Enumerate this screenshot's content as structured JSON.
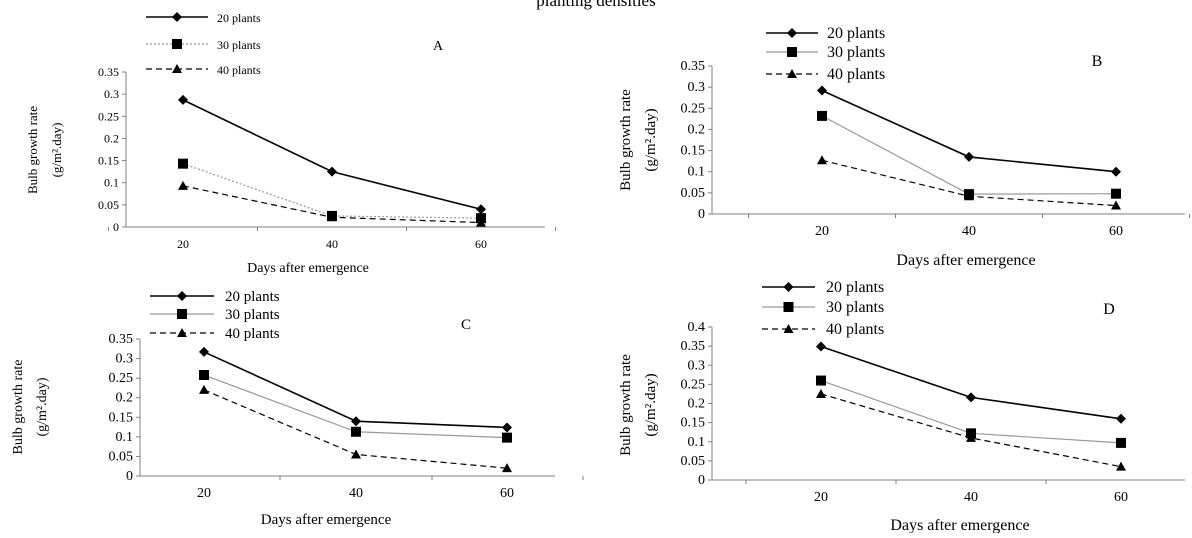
{
  "figure": {
    "title": "planting densities"
  },
  "chart_data": [
    {
      "type": "line",
      "panel_label": "A",
      "x": [
        20,
        40,
        60
      ],
      "xlabel": "Days after emergence",
      "ylabel_line1": "Bulb growth rate",
      "ylabel_line2": "(g/m².day)",
      "ylim": [
        0,
        0.35
      ],
      "yticks": [
        0,
        0.05,
        0.1,
        0.15,
        0.2,
        0.25,
        0.3,
        0.35
      ],
      "ytick_labels": [
        "0",
        "0.05",
        "0.1",
        "0.15",
        "0.2",
        "0.25",
        "0.3",
        "0.35"
      ],
      "legend_position": "top-left",
      "series": [
        {
          "name": "20 plants",
          "values": [
            0.287,
            0.125,
            0.04
          ],
          "marker": "diamond",
          "dash": "solid",
          "color": "#000000"
        },
        {
          "name": "30 plants",
          "values": [
            0.143,
            0.025,
            0.02
          ],
          "marker": "square",
          "dash": "dotted",
          "color": "#999999"
        },
        {
          "name": "40 plants",
          "values": [
            0.093,
            0.022,
            0.01
          ],
          "marker": "triangle",
          "dash": "dashed",
          "color": "#000000"
        }
      ]
    },
    {
      "type": "line",
      "panel_label": "B",
      "x": [
        20,
        40,
        60
      ],
      "xlabel": "Days after emergence",
      "ylabel_line1": "Bulb growth rate",
      "ylabel_line2": "(g/m².day)",
      "ylim": [
        0,
        0.35
      ],
      "yticks": [
        0,
        0.05,
        0.1,
        0.15,
        0.2,
        0.25,
        0.3,
        0.35
      ],
      "ytick_labels": [
        "0",
        "0.05",
        "0.1",
        "0.15",
        "0.2",
        "0.25",
        "0.3",
        "0.35"
      ],
      "legend_position": "top-left",
      "series": [
        {
          "name": "20 plants",
          "values": [
            0.292,
            0.135,
            0.1
          ],
          "marker": "diamond",
          "dash": "solid",
          "color": "#000000"
        },
        {
          "name": "30 plants",
          "values": [
            0.232,
            0.047,
            0.048
          ],
          "marker": "square",
          "dash": "solid",
          "color": "#999999"
        },
        {
          "name": "40 plants",
          "values": [
            0.127,
            0.042,
            0.02
          ],
          "marker": "triangle",
          "dash": "dashed",
          "color": "#000000"
        }
      ]
    },
    {
      "type": "line",
      "panel_label": "C",
      "x": [
        20,
        40,
        60
      ],
      "xlabel": "Days after emergence",
      "ylabel_line1": "Bulb growth rate",
      "ylabel_line2": "(g/m².day)",
      "ylim": [
        0,
        0.35
      ],
      "yticks": [
        0,
        0.05,
        0.1,
        0.15,
        0.2,
        0.25,
        0.3,
        0.35
      ],
      "ytick_labels": [
        "0",
        "0.05",
        "0.1",
        "0.15",
        "0.2",
        "0.25",
        "0.3",
        "0.35"
      ],
      "legend_position": "top-left",
      "series": [
        {
          "name": "20 plants",
          "values": [
            0.317,
            0.14,
            0.124
          ],
          "marker": "diamond",
          "dash": "solid",
          "color": "#000000"
        },
        {
          "name": "30 plants",
          "values": [
            0.258,
            0.113,
            0.098
          ],
          "marker": "square",
          "dash": "solid",
          "color": "#999999"
        },
        {
          "name": "40 plants",
          "values": [
            0.22,
            0.055,
            0.02
          ],
          "marker": "triangle",
          "dash": "dashed",
          "color": "#000000"
        }
      ]
    },
    {
      "type": "line",
      "panel_label": "D",
      "x": [
        20,
        40,
        60
      ],
      "xlabel": "Days after emergence",
      "ylabel_line1": "Bulb growth rate",
      "ylabel_line2": "(g/m².day)",
      "ylim": [
        0,
        0.4
      ],
      "yticks": [
        0,
        0.05,
        0.1,
        0.15,
        0.2,
        0.25,
        0.3,
        0.35,
        0.4
      ],
      "ytick_labels": [
        "0",
        "0.05",
        "0.1",
        "0.15",
        "0.2",
        "0.25",
        "0.3",
        "0.35",
        "0.4"
      ],
      "legend_position": "top-left",
      "series": [
        {
          "name": "20 plants",
          "values": [
            0.349,
            0.216,
            0.16
          ],
          "marker": "diamond",
          "dash": "solid",
          "color": "#000000"
        },
        {
          "name": "30 plants",
          "values": [
            0.26,
            0.122,
            0.097
          ],
          "marker": "square",
          "dash": "solid",
          "color": "#999999"
        },
        {
          "name": "40 plants",
          "values": [
            0.225,
            0.11,
            0.035
          ],
          "marker": "triangle",
          "dash": "dashed",
          "color": "#000000"
        }
      ]
    }
  ]
}
